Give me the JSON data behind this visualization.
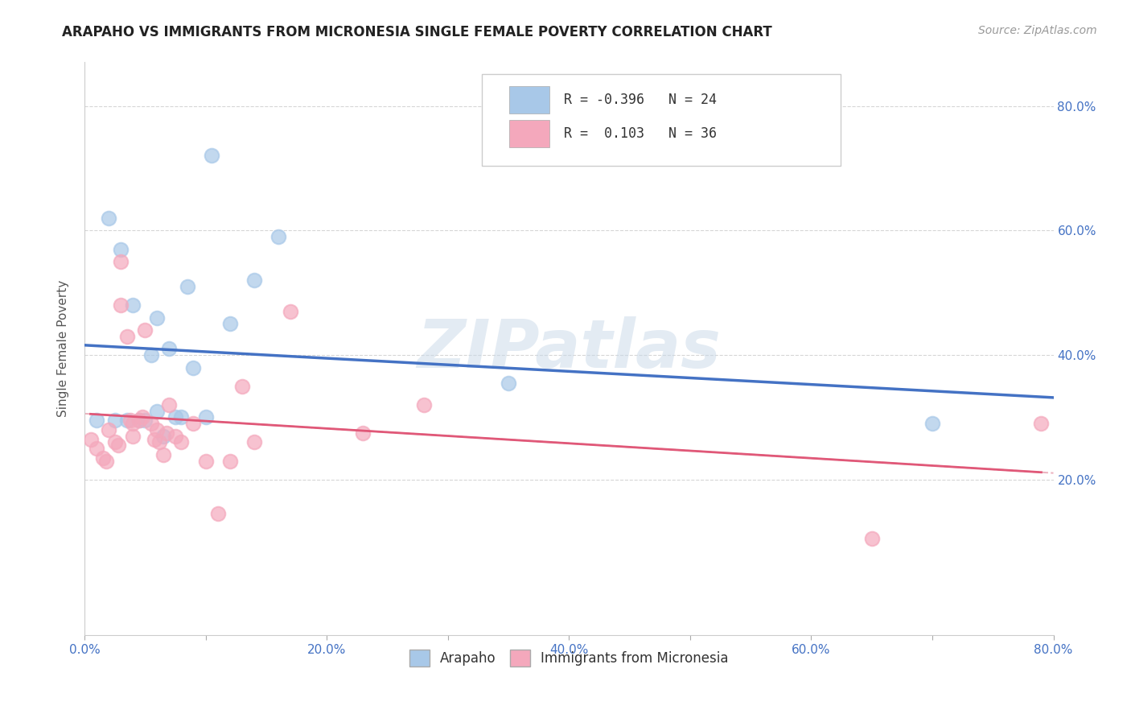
{
  "title": "ARAPAHO VS IMMIGRANTS FROM MICRONESIA SINGLE FEMALE POVERTY CORRELATION CHART",
  "source_text": "Source: ZipAtlas.com",
  "ylabel": "Single Female Poverty",
  "xlim": [
    0.0,
    0.8
  ],
  "ylim": [
    -0.05,
    0.87
  ],
  "xtick_labels": [
    "0.0%",
    "",
    "20.0%",
    "",
    "40.0%",
    "",
    "60.0%",
    "",
    "80.0%"
  ],
  "xtick_vals": [
    0.0,
    0.1,
    0.2,
    0.3,
    0.4,
    0.5,
    0.6,
    0.7,
    0.8
  ],
  "ytick_labels": [
    "20.0%",
    "40.0%",
    "60.0%",
    "80.0%"
  ],
  "ytick_vals": [
    0.2,
    0.4,
    0.6,
    0.8
  ],
  "legend_entries": [
    "Arapaho",
    "Immigrants from Micronesia"
  ],
  "r_arapaho": -0.396,
  "n_arapaho": 24,
  "r_micronesia": 0.103,
  "n_micronesia": 36,
  "arapaho_color": "#a8c8e8",
  "micronesia_color": "#f4a8bc",
  "arapaho_line_color": "#4472c4",
  "micronesia_line_color": "#e05878",
  "dashed_line_color": "#e8a0b0",
  "background_color": "#ffffff",
  "watermark_color": "#c8d8e8",
  "arapaho_x": [
    0.01,
    0.02,
    0.025,
    0.03,
    0.035,
    0.04,
    0.045,
    0.05,
    0.055,
    0.06,
    0.06,
    0.065,
    0.07,
    0.075,
    0.08,
    0.085,
    0.09,
    0.1,
    0.105,
    0.12,
    0.14,
    0.16,
    0.35,
    0.7
  ],
  "arapaho_y": [
    0.295,
    0.62,
    0.295,
    0.57,
    0.295,
    0.48,
    0.295,
    0.295,
    0.4,
    0.31,
    0.46,
    0.27,
    0.41,
    0.3,
    0.3,
    0.51,
    0.38,
    0.3,
    0.72,
    0.45,
    0.52,
    0.59,
    0.355,
    0.29
  ],
  "micronesia_x": [
    0.005,
    0.01,
    0.015,
    0.018,
    0.02,
    0.025,
    0.028,
    0.03,
    0.03,
    0.035,
    0.038,
    0.04,
    0.04,
    0.045,
    0.048,
    0.05,
    0.055,
    0.058,
    0.06,
    0.062,
    0.065,
    0.068,
    0.07,
    0.075,
    0.08,
    0.09,
    0.1,
    0.11,
    0.12,
    0.13,
    0.14,
    0.17,
    0.23,
    0.28,
    0.65,
    0.79
  ],
  "micronesia_y": [
    0.265,
    0.25,
    0.235,
    0.23,
    0.28,
    0.26,
    0.255,
    0.55,
    0.48,
    0.43,
    0.295,
    0.29,
    0.27,
    0.295,
    0.3,
    0.44,
    0.29,
    0.265,
    0.28,
    0.26,
    0.24,
    0.275,
    0.32,
    0.27,
    0.26,
    0.29,
    0.23,
    0.145,
    0.23,
    0.35,
    0.26,
    0.47,
    0.275,
    0.32,
    0.105,
    0.29
  ]
}
